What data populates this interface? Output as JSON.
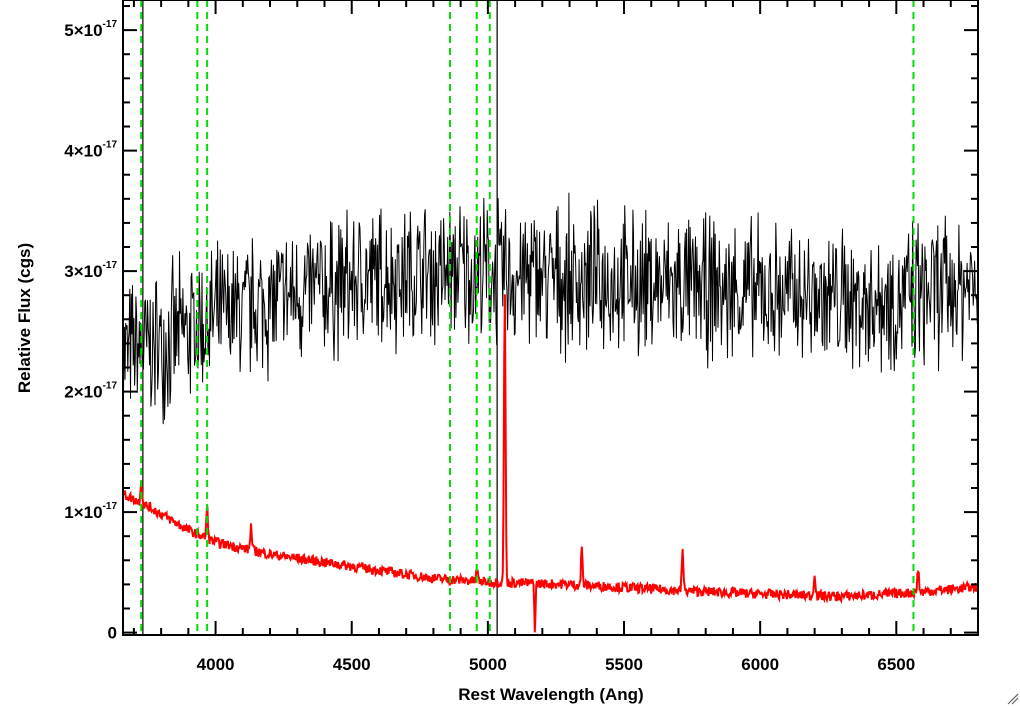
{
  "chart_data": {
    "type": "line",
    "xlabel": "Rest Wavelength (Ang)",
    "ylabel": "Relative Flux (cgs)",
    "xlim": [
      3660,
      6800
    ],
    "ylim": [
      -2e-19,
      5.25e-17
    ],
    "x_ticks": [
      4000,
      4500,
      5000,
      5500,
      6000,
      6500
    ],
    "x_tick_labels": [
      "4000",
      "4500",
      "5000",
      "5500",
      "6000",
      "6500"
    ],
    "y_ticks": [
      0,
      1e-17,
      2e-17,
      3e-17,
      4e-17,
      5e-17
    ],
    "y_tick_labels": [
      {
        "mant": "0",
        "exp": ""
      },
      {
        "mant": "1×10",
        "exp": "-17"
      },
      {
        "mant": "2×10",
        "exp": "-17"
      },
      {
        "mant": "3×10",
        "exp": "-17"
      },
      {
        "mant": "4×10",
        "exp": "-17"
      },
      {
        "mant": "5×10",
        "exp": "-17"
      }
    ],
    "vertical_lines": [
      3727,
      3933,
      3969,
      4861,
      4959,
      5007,
      6563
    ],
    "spike_lines": [
      3733,
      5034
    ],
    "grid": false,
    "legend": "none",
    "series": [
      {
        "color": "#000000",
        "style": "noisy-spectrum",
        "continuum_x": [
          3660,
          3800,
          4000,
          4300,
          4600,
          4900,
          5200,
          5500,
          5800,
          6100,
          6400,
          6550,
          6800
        ],
        "continuum_y": [
          2.3e-17,
          2.4e-17,
          2.6e-17,
          2.8e-17,
          2.95e-17,
          3e-17,
          2.95e-17,
          2.9e-17,
          2.85e-17,
          2.8e-17,
          2.75e-17,
          2.8e-17,
          2.9e-17
        ],
        "noise": 4.5e-18
      },
      {
        "color": "#ff0000",
        "style": "model-spectrum",
        "continuum_x": [
          3660,
          3750,
          3900,
          4000,
          4200,
          4500,
          4800,
          5000,
          5300,
          5700,
          6000,
          6300,
          6550,
          6800
        ],
        "continuum_y": [
          1.15e-17,
          1.05e-17,
          8.5e-18,
          7.5e-18,
          6.5e-18,
          5.5e-18,
          4.5e-18,
          4.2e-18,
          4e-18,
          3.5e-18,
          3.2e-18,
          3e-18,
          3.3e-18,
          3.8e-18
        ],
        "emission_lines": [
          {
            "x": 3727,
            "height": 2e-18
          },
          {
            "x": 3969,
            "height": 2.5e-18
          },
          {
            "x": 4130,
            "height": 2e-18
          },
          {
            "x": 4960,
            "height": 1e-18
          },
          {
            "x": 5062,
            "height": 2.4e-17
          },
          {
            "x": 5345,
            "height": 3e-18
          },
          {
            "x": 5715,
            "height": 3.5e-18
          },
          {
            "x": 6200,
            "height": 2e-18
          },
          {
            "x": 6580,
            "height": 2e-18
          }
        ],
        "absorption_lines": [
          {
            "x": 5173,
            "depth": 4e-18
          }
        ]
      }
    ]
  }
}
